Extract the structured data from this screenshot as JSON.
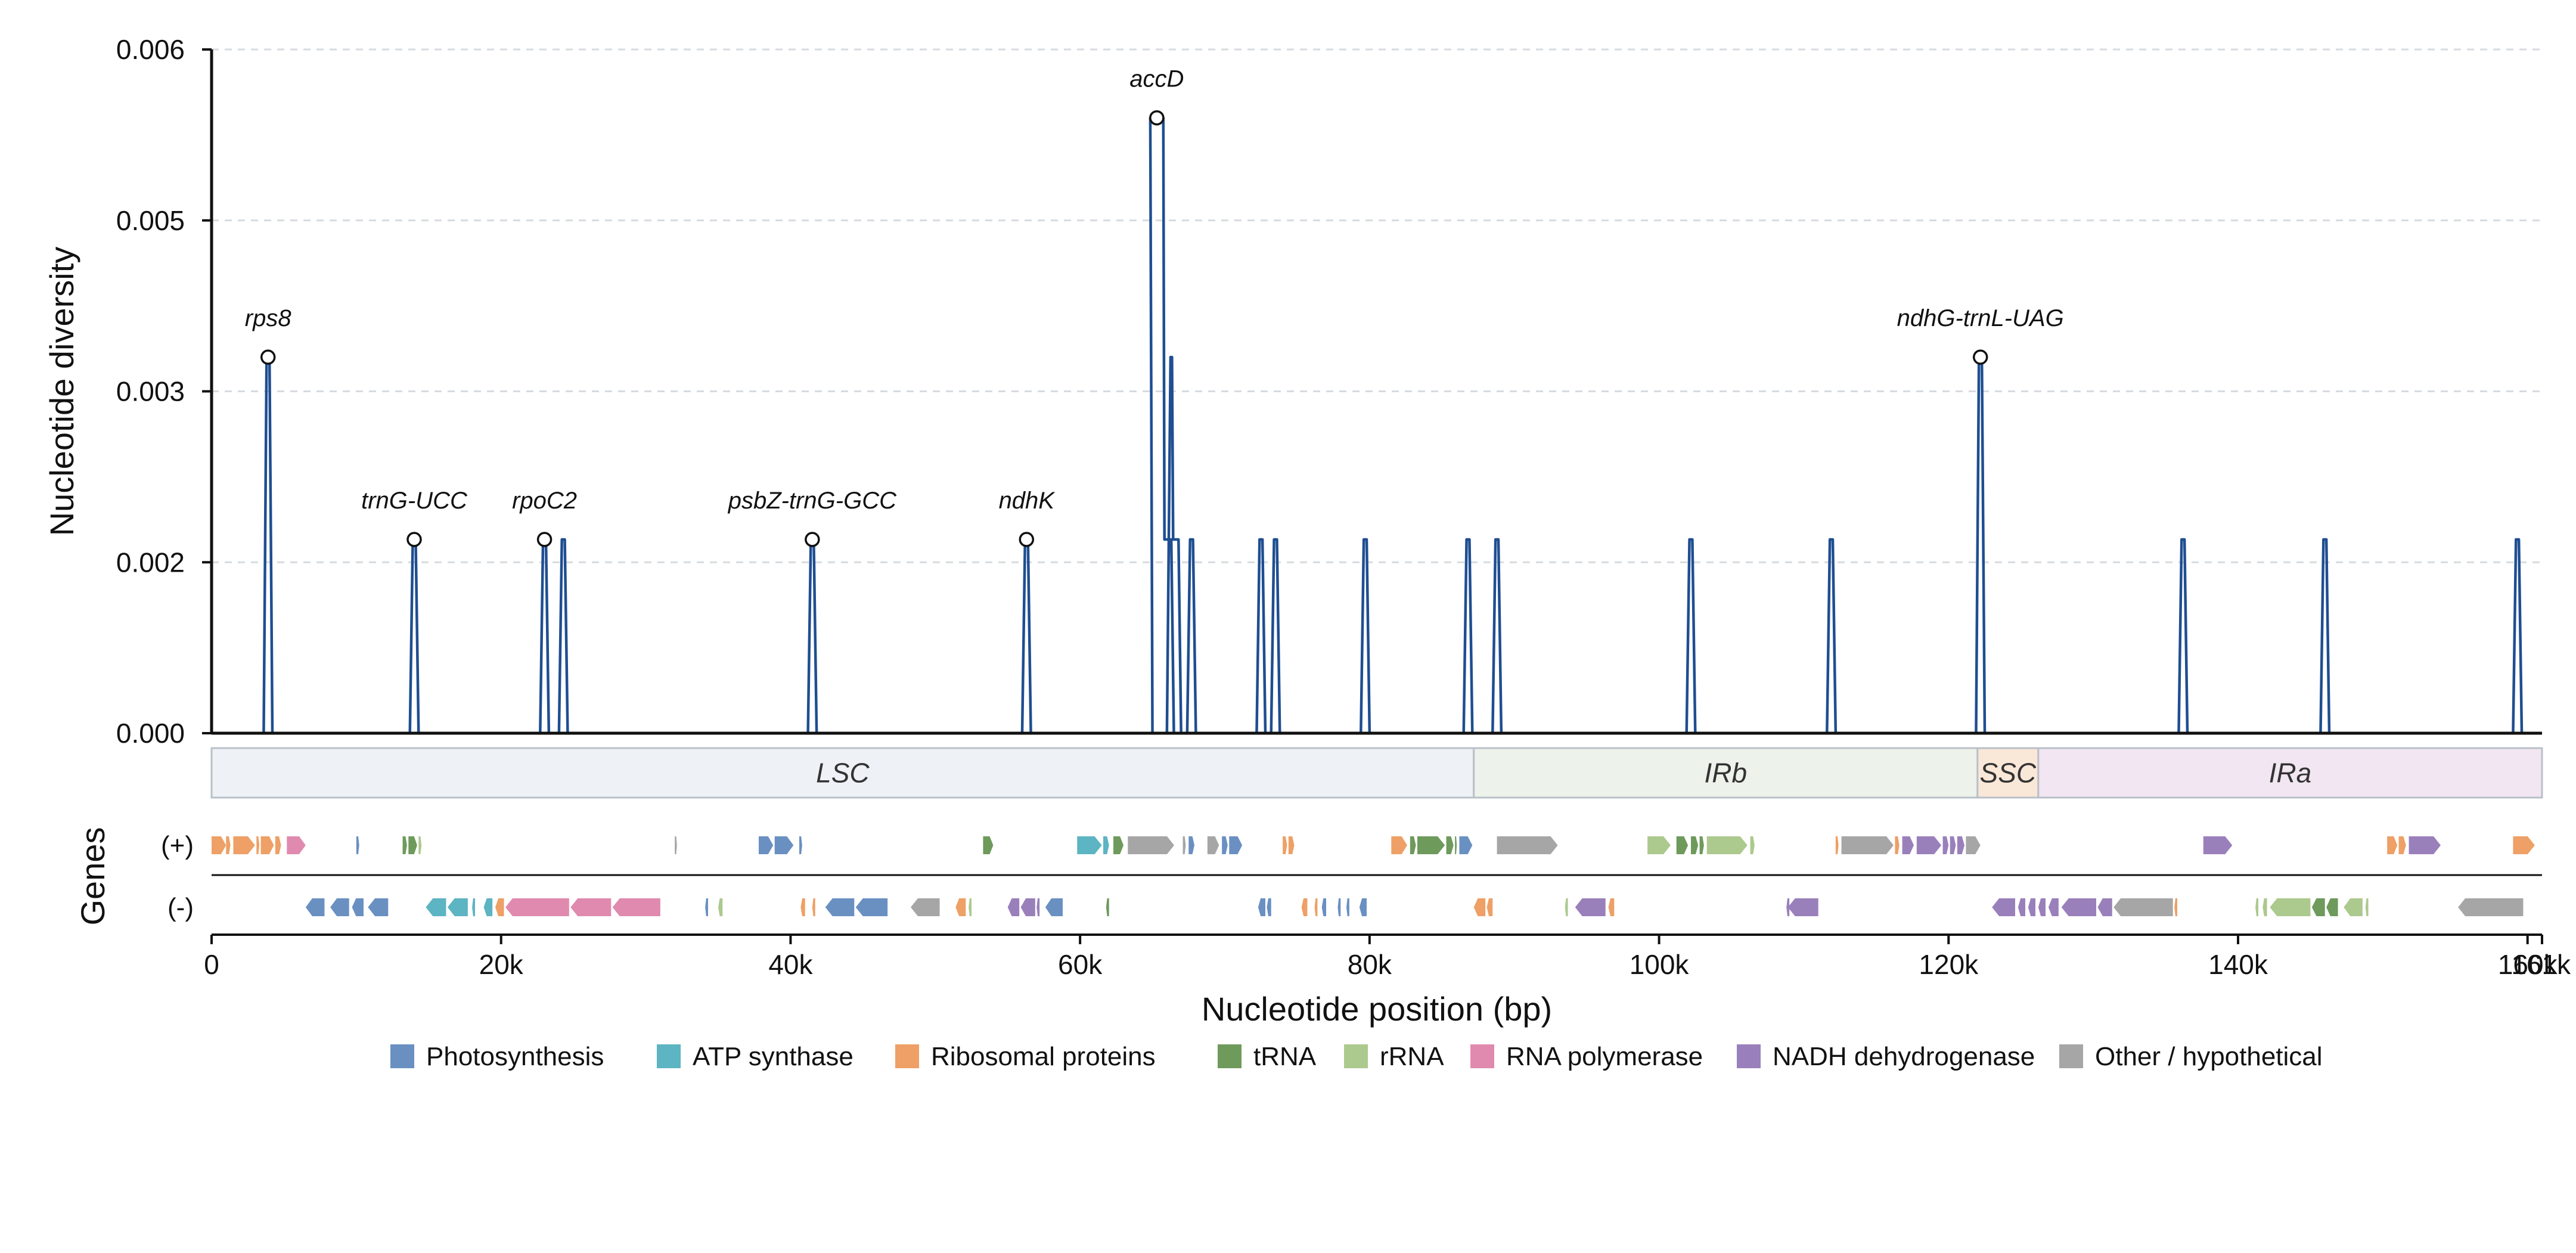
{
  "chart_data": {
    "type": "line",
    "x_range": [
      0,
      161000
    ],
    "y_range": [
      0,
      0.006
    ],
    "ylabel": "Nucleotide diversity",
    "xlabel": "Nucleotide position (bp)",
    "y_ticks": [
      {
        "value": 0,
        "label": "0.000"
      },
      {
        "value": 0.0015,
        "label": "0.002"
      },
      {
        "value": 0.003,
        "label": "0.003"
      },
      {
        "value": 0.0045,
        "label": "0.005"
      },
      {
        "value": 0.006,
        "label": "0.006"
      }
    ],
    "x_ticks": [
      {
        "value": 0,
        "label": "0"
      },
      {
        "value": 20000,
        "label": "20k"
      },
      {
        "value": 40000,
        "label": "40k"
      },
      {
        "value": 60000,
        "label": "60k"
      },
      {
        "value": 80000,
        "label": "80k"
      },
      {
        "value": 100000,
        "label": "100k"
      },
      {
        "value": 120000,
        "label": "120k"
      },
      {
        "value": 140000,
        "label": "140k"
      },
      {
        "value": 160000,
        "label": "160k"
      },
      {
        "value": 161000,
        "label": "161k"
      }
    ],
    "grid": "horizontal dashed",
    "window_size_bp": 600,
    "peaks": [
      {
        "x": 3900,
        "y": 0.0033
      },
      {
        "x": 14000,
        "y": 0.0017
      },
      {
        "x": 23000,
        "y": 0.0017
      },
      {
        "x": 24300,
        "y": 0.0017
      },
      {
        "x": 41500,
        "y": 0.0017
      },
      {
        "x": 56300,
        "y": 0.0017
      },
      {
        "x": 65300,
        "y": 0.0054,
        "top_width": 900,
        "shoulder": 0.0017,
        "shoulder_end": 66300
      },
      {
        "x": 66300,
        "y": 0.0033,
        "top_width": 100,
        "shoulder": 0.0017,
        "shoulder_end": 66800
      },
      {
        "x": 67700,
        "y": 0.0017
      },
      {
        "x": 72500,
        "y": 0.0017
      },
      {
        "x": 73500,
        "y": 0.0017
      },
      {
        "x": 79700,
        "y": 0.0017
      },
      {
        "x": 86800,
        "y": 0.0017
      },
      {
        "x": 88800,
        "y": 0.0017
      },
      {
        "x": 102200,
        "y": 0.0017
      },
      {
        "x": 111900,
        "y": 0.0017
      },
      {
        "x": 122200,
        "y": 0.0033
      },
      {
        "x": 136200,
        "y": 0.0017
      },
      {
        "x": 146000,
        "y": 0.0017
      },
      {
        "x": 159300,
        "y": 0.0017
      }
    ],
    "annotations": [
      {
        "label": "rps8",
        "x": 3900,
        "y": 0.0033
      },
      {
        "label": "trnG-UCC",
        "x": 14000,
        "y": 0.0017
      },
      {
        "label": "rpoC2",
        "x": 23000,
        "y": 0.0017
      },
      {
        "label": "psbZ-trnG-GCC",
        "x": 41500,
        "y": 0.0017
      },
      {
        "label": "ndhK",
        "x": 56300,
        "y": 0.0017
      },
      {
        "label": "accD",
        "x": 65300,
        "y": 0.0054
      },
      {
        "label": "ndhG-trnL-UAG",
        "x": 122200,
        "y": 0.0033
      }
    ],
    "regions": [
      {
        "name": "LSC",
        "start": 0,
        "end": 87200,
        "color": "#eef2f6"
      },
      {
        "name": "IRb",
        "start": 87200,
        "end": 122000,
        "color": "#edf2ea"
      },
      {
        "name": "SSC",
        "start": 122000,
        "end": 126200,
        "color": "#f9e7d8"
      },
      {
        "name": "IRa",
        "start": 126200,
        "end": 161000,
        "color": "#f2e6f2"
      }
    ],
    "gene_track": {
      "title": "Genes",
      "strands": [
        {
          "key": "plus",
          "label": "(+)"
        },
        {
          "key": "minus",
          "label": "(-)"
        }
      ],
      "plus": [
        {
          "start": 0,
          "end": 1000,
          "c": "rib"
        },
        {
          "start": 1000,
          "end": 1300,
          "c": "rib"
        },
        {
          "start": 1500,
          "end": 3000,
          "c": "rib"
        },
        {
          "start": 3100,
          "end": 3300,
          "c": "rib"
        },
        {
          "start": 3400,
          "end": 4300,
          "c": "rib"
        },
        {
          "start": 4400,
          "end": 4800,
          "c": "rib"
        },
        {
          "start": 5200,
          "end": 6500,
          "c": "pol"
        },
        {
          "start": 10000,
          "end": 10200,
          "c": "ph"
        },
        {
          "start": 13200,
          "end": 13500,
          "c": "tr"
        },
        {
          "start": 13600,
          "end": 14200,
          "c": "tr"
        },
        {
          "start": 14300,
          "end": 14500,
          "c": "rr"
        },
        {
          "start": 32000,
          "end": 32150,
          "c": "ot"
        },
        {
          "start": 37800,
          "end": 38800,
          "c": "ph"
        },
        {
          "start": 38900,
          "end": 40200,
          "c": "ph"
        },
        {
          "start": 40600,
          "end": 40800,
          "c": "ph"
        },
        {
          "start": 53300,
          "end": 54000,
          "c": "tr"
        },
        {
          "start": 59800,
          "end": 61500,
          "c": "atp"
        },
        {
          "start": 61600,
          "end": 62000,
          "c": "atp"
        },
        {
          "start": 62300,
          "end": 63000,
          "c": "tr"
        },
        {
          "start": 63300,
          "end": 66500,
          "c": "ot"
        },
        {
          "start": 67100,
          "end": 67300,
          "c": "ot"
        },
        {
          "start": 67500,
          "end": 67900,
          "c": "ph"
        },
        {
          "start": 68800,
          "end": 69600,
          "c": "ot"
        },
        {
          "start": 69800,
          "end": 70200,
          "c": "ph"
        },
        {
          "start": 70300,
          "end": 71200,
          "c": "ph"
        },
        {
          "start": 74000,
          "end": 74300,
          "c": "rib"
        },
        {
          "start": 74400,
          "end": 74800,
          "c": "rib"
        },
        {
          "start": 81500,
          "end": 82600,
          "c": "rib"
        },
        {
          "start": 82800,
          "end": 83200,
          "c": "tr"
        },
        {
          "start": 83300,
          "end": 85200,
          "c": "tr"
        },
        {
          "start": 85300,
          "end": 85800,
          "c": "tr"
        },
        {
          "start": 85900,
          "end": 86000,
          "c": "tr"
        },
        {
          "start": 86200,
          "end": 87100,
          "c": "ph"
        },
        {
          "start": 88800,
          "end": 93000,
          "c": "ot"
        },
        {
          "start": 99200,
          "end": 100800,
          "c": "rr"
        },
        {
          "start": 101200,
          "end": 102000,
          "c": "tr"
        },
        {
          "start": 102200,
          "end": 102700,
          "c": "tr"
        },
        {
          "start": 102800,
          "end": 103100,
          "c": "tr"
        },
        {
          "start": 103300,
          "end": 106100,
          "c": "rr"
        },
        {
          "start": 106300,
          "end": 106600,
          "c": "rr"
        },
        {
          "start": 112200,
          "end": 112400,
          "c": "rib"
        },
        {
          "start": 112600,
          "end": 116200,
          "c": "ot"
        },
        {
          "start": 116300,
          "end": 116600,
          "c": "rib"
        },
        {
          "start": 116800,
          "end": 117600,
          "c": "ndh"
        },
        {
          "start": 117800,
          "end": 119500,
          "c": "ndh"
        },
        {
          "start": 119600,
          "end": 120000,
          "c": "ndh"
        },
        {
          "start": 120100,
          "end": 120500,
          "c": "ndh"
        },
        {
          "start": 120600,
          "end": 121100,
          "c": "ndh"
        },
        {
          "start": 121200,
          "end": 122200,
          "c": "ot"
        },
        {
          "start": 137600,
          "end": 139600,
          "c": "ndh"
        },
        {
          "start": 150300,
          "end": 151000,
          "c": "rib"
        },
        {
          "start": 151100,
          "end": 151600,
          "c": "rib"
        },
        {
          "start": 151800,
          "end": 154000,
          "c": "ndh"
        },
        {
          "start": 159000,
          "end": 160500,
          "c": "rib"
        }
      ],
      "minus": [
        {
          "start": 6500,
          "end": 7800,
          "c": "ph"
        },
        {
          "start": 8200,
          "end": 9500,
          "c": "ph"
        },
        {
          "start": 9700,
          "end": 10500,
          "c": "ph"
        },
        {
          "start": 10800,
          "end": 12200,
          "c": "ph"
        },
        {
          "start": 14800,
          "end": 16200,
          "c": "atp"
        },
        {
          "start": 16300,
          "end": 17700,
          "c": "atp"
        },
        {
          "start": 18000,
          "end": 18200,
          "c": "atp"
        },
        {
          "start": 18800,
          "end": 19400,
          "c": "atp"
        },
        {
          "start": 19600,
          "end": 20200,
          "c": "rib"
        },
        {
          "start": 20300,
          "end": 24700,
          "c": "pol"
        },
        {
          "start": 24800,
          "end": 27600,
          "c": "pol"
        },
        {
          "start": 27700,
          "end": 31000,
          "c": "pol"
        },
        {
          "start": 34100,
          "end": 34300,
          "c": "ph"
        },
        {
          "start": 35000,
          "end": 35300,
          "c": "rr"
        },
        {
          "start": 40700,
          "end": 41000,
          "c": "rib"
        },
        {
          "start": 41500,
          "end": 41700,
          "c": "rib"
        },
        {
          "start": 42400,
          "end": 44400,
          "c": "ph"
        },
        {
          "start": 44500,
          "end": 46700,
          "c": "ph"
        },
        {
          "start": 48300,
          "end": 50300,
          "c": "ot"
        },
        {
          "start": 51400,
          "end": 52100,
          "c": "rib"
        },
        {
          "start": 52300,
          "end": 52500,
          "c": "rr"
        },
        {
          "start": 55000,
          "end": 55800,
          "c": "ndh"
        },
        {
          "start": 55900,
          "end": 56900,
          "c": "ndh"
        },
        {
          "start": 57000,
          "end": 57200,
          "c": "ndh"
        },
        {
          "start": 57600,
          "end": 58800,
          "c": "ph"
        },
        {
          "start": 61800,
          "end": 62000,
          "c": "tr"
        },
        {
          "start": 72300,
          "end": 72800,
          "c": "ph"
        },
        {
          "start": 72900,
          "end": 73200,
          "c": "ph"
        },
        {
          "start": 75300,
          "end": 75700,
          "c": "rib"
        },
        {
          "start": 76200,
          "end": 76400,
          "c": "rib"
        },
        {
          "start": 76700,
          "end": 77000,
          "c": "ph"
        },
        {
          "start": 77800,
          "end": 78000,
          "c": "ph"
        },
        {
          "start": 78400,
          "end": 78600,
          "c": "ph"
        },
        {
          "start": 79300,
          "end": 79800,
          "c": "ph"
        },
        {
          "start": 87200,
          "end": 88000,
          "c": "rib"
        },
        {
          "start": 88100,
          "end": 88500,
          "c": "rib"
        },
        {
          "start": 93500,
          "end": 93700,
          "c": "rr"
        },
        {
          "start": 94200,
          "end": 96300,
          "c": "ndh"
        },
        {
          "start": 96500,
          "end": 96900,
          "c": "rib"
        },
        {
          "start": 108800,
          "end": 109000,
          "c": "ndh"
        },
        {
          "start": 108900,
          "end": 111000,
          "c": "ndh"
        },
        {
          "start": 123000,
          "end": 124600,
          "c": "ndh"
        },
        {
          "start": 124800,
          "end": 125300,
          "c": "ndh"
        },
        {
          "start": 125500,
          "end": 126000,
          "c": "ndh"
        },
        {
          "start": 126200,
          "end": 126700,
          "c": "ndh"
        },
        {
          "start": 126900,
          "end": 127600,
          "c": "ndh"
        },
        {
          "start": 127800,
          "end": 130200,
          "c": "ndh"
        },
        {
          "start": 130300,
          "end": 131300,
          "c": "ndh"
        },
        {
          "start": 131400,
          "end": 135500,
          "c": "ot"
        },
        {
          "start": 135600,
          "end": 135800,
          "c": "rib"
        },
        {
          "start": 141200,
          "end": 141400,
          "c": "rr"
        },
        {
          "start": 141700,
          "end": 142000,
          "c": "rr"
        },
        {
          "start": 142200,
          "end": 145000,
          "c": "rr"
        },
        {
          "start": 145100,
          "end": 146000,
          "c": "tr"
        },
        {
          "start": 146100,
          "end": 146900,
          "c": "tr"
        },
        {
          "start": 147300,
          "end": 148600,
          "c": "rr"
        },
        {
          "start": 148800,
          "end": 149000,
          "c": "rr"
        },
        {
          "start": 155200,
          "end": 159700,
          "c": "ot"
        }
      ]
    },
    "legend": [
      {
        "key": "ph",
        "label": "Photosynthesis",
        "color": "#6a90c2"
      },
      {
        "key": "atp",
        "label": "ATP synthase",
        "color": "#5db4c2"
      },
      {
        "key": "rib",
        "label": "Ribosomal proteins",
        "color": "#eea066"
      },
      {
        "key": "tr",
        "label": "tRNA",
        "color": "#6e9a5c"
      },
      {
        "key": "rr",
        "label": "rRNA",
        "color": "#acc98e"
      },
      {
        "key": "pol",
        "label": "RNA polymerase",
        "color": "#e08aaf"
      },
      {
        "key": "ndh",
        "label": "NADH dehydrogenase",
        "color": "#9a80bb"
      },
      {
        "key": "ot",
        "label": "Other / hypothetical",
        "color": "#a6a6a6"
      }
    ],
    "line_color": "#1f4e91"
  }
}
